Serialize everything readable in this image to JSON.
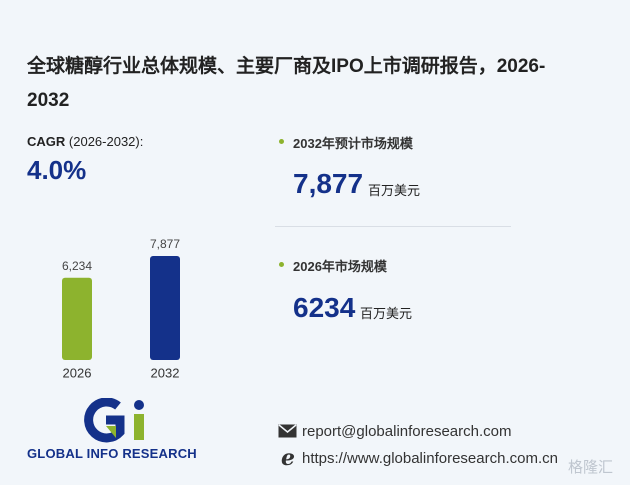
{
  "header": {
    "title": "全球糖醇行业总体规模、主要厂商及IPO上市调研报告，2026-2032"
  },
  "cagr": {
    "label": "CAGR",
    "period": "(2026-2032):",
    "value": "4.0%"
  },
  "chart_data": {
    "type": "bar",
    "categories": [
      "2026",
      "2032"
    ],
    "values": [
      6234,
      7877
    ],
    "value_labels": [
      "6,234",
      "7,877"
    ],
    "colors": [
      "#8db32e",
      "#14318a"
    ]
  },
  "stats": [
    {
      "label": "2032年预计市场规模",
      "value": "7,877",
      "unit": "百万美元"
    },
    {
      "label": "2026年市场规模",
      "value": "6234",
      "unit": "百万美元"
    }
  ],
  "logo": {
    "name": "GLOBAL INFO RESEARCH"
  },
  "contact": {
    "email": "report@globalinforesearch.com",
    "website": "https://www.globalinforesearch.com.cn"
  },
  "watermark": "格隆汇"
}
